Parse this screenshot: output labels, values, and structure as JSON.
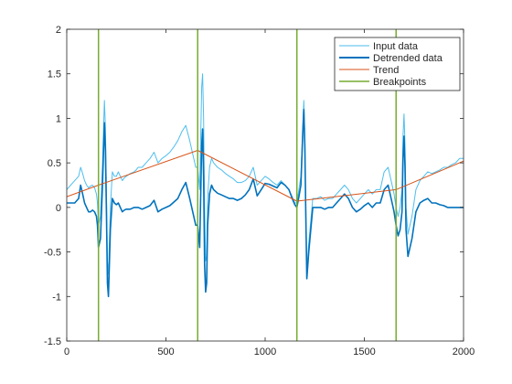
{
  "chart_data": {
    "type": "line",
    "title": "",
    "xlabel": "",
    "ylabel": "",
    "xlim": [
      0,
      2000
    ],
    "ylim": [
      -1.5,
      2
    ],
    "xticks": [
      0,
      500,
      1000,
      1500,
      2000
    ],
    "yticks": [
      -1.5,
      -1,
      -0.5,
      0,
      0.5,
      1,
      1.5,
      2
    ],
    "grid": false,
    "legend_position": "top-right",
    "breakpoints": [
      160,
      660,
      1160,
      1660
    ],
    "series": [
      {
        "name": "Input data",
        "color": "#4DBEEE",
        "x": [
          0,
          40,
          60,
          70,
          80,
          90,
          100,
          110,
          120,
          130,
          140,
          150,
          155,
          160,
          170,
          180,
          190,
          195,
          200,
          205,
          210,
          220,
          230,
          240,
          250,
          260,
          270,
          280,
          290,
          300,
          320,
          340,
          350,
          360,
          380,
          400,
          420,
          440,
          460,
          480,
          500,
          520,
          540,
          560,
          580,
          600,
          620,
          640,
          650,
          660,
          670,
          680,
          685,
          690,
          695,
          700,
          705,
          710,
          720,
          730,
          740,
          760,
          780,
          800,
          820,
          840,
          860,
          880,
          900,
          920,
          940,
          960,
          980,
          1000,
          1020,
          1040,
          1060,
          1080,
          1100,
          1120,
          1140,
          1150,
          1160,
          1170,
          1180,
          1190,
          1195,
          1200,
          1205,
          1210,
          1220,
          1240,
          1260,
          1280,
          1300,
          1320,
          1340,
          1360,
          1380,
          1400,
          1420,
          1440,
          1460,
          1480,
          1500,
          1520,
          1540,
          1560,
          1580,
          1600,
          1620,
          1640,
          1650,
          1660,
          1670,
          1680,
          1690,
          1695,
          1700,
          1705,
          1710,
          1720,
          1740,
          1760,
          1780,
          1800,
          1820,
          1840,
          1860,
          1880,
          1900,
          1920,
          1940,
          1960,
          1980,
          2000
        ],
        "y": [
          0.2,
          0.3,
          0.35,
          0.45,
          0.38,
          0.3,
          0.25,
          0.22,
          0.24,
          0.25,
          0.22,
          0.15,
          0.05,
          -0.2,
          -0.1,
          0.5,
          1.2,
          0.9,
          0.2,
          -0.6,
          -0.75,
          0.0,
          0.4,
          0.35,
          0.35,
          0.4,
          0.35,
          0.3,
          0.33,
          0.35,
          0.38,
          0.4,
          0.42,
          0.45,
          0.45,
          0.5,
          0.55,
          0.62,
          0.5,
          0.55,
          0.58,
          0.62,
          0.68,
          0.75,
          0.85,
          0.92,
          0.75,
          0.55,
          0.45,
          0.45,
          0.2,
          1.35,
          1.5,
          1.0,
          0.0,
          -0.6,
          -0.55,
          0.1,
          0.45,
          0.55,
          0.5,
          0.45,
          0.42,
          0.38,
          0.35,
          0.32,
          0.28,
          0.28,
          0.3,
          0.35,
          0.45,
          0.25,
          0.3,
          0.35,
          0.32,
          0.28,
          0.25,
          0.3,
          0.25,
          0.2,
          0.1,
          0.05,
          0.05,
          0.2,
          0.35,
          0.9,
          1.2,
          0.8,
          0.0,
          -0.7,
          -0.4,
          0.1,
          0.1,
          0.12,
          0.08,
          0.1,
          0.1,
          0.15,
          0.2,
          0.25,
          0.2,
          0.1,
          0.05,
          0.1,
          0.15,
          0.2,
          0.15,
          0.2,
          0.2,
          0.4,
          0.45,
          0.25,
          0.15,
          0.0,
          -0.1,
          0.0,
          0.2,
          0.8,
          1.05,
          0.7,
          0.0,
          -0.3,
          -0.1,
          0.2,
          0.3,
          0.35,
          0.4,
          0.38,
          0.4,
          0.42,
          0.45,
          0.45,
          0.48,
          0.5,
          0.55,
          0.55
        ]
      },
      {
        "name": "Detrended data",
        "color": "#0072BD",
        "x": [
          0,
          40,
          60,
          70,
          80,
          90,
          100,
          110,
          120,
          130,
          140,
          150,
          155,
          160,
          170,
          180,
          190,
          195,
          200,
          205,
          210,
          220,
          230,
          240,
          250,
          260,
          270,
          280,
          290,
          300,
          320,
          340,
          350,
          360,
          380,
          400,
          420,
          440,
          460,
          480,
          500,
          520,
          540,
          560,
          580,
          600,
          620,
          640,
          650,
          660,
          670,
          680,
          685,
          690,
          695,
          700,
          705,
          710,
          720,
          730,
          740,
          760,
          780,
          800,
          820,
          840,
          860,
          880,
          900,
          920,
          940,
          960,
          980,
          1000,
          1020,
          1040,
          1060,
          1080,
          1100,
          1120,
          1140,
          1150,
          1160,
          1170,
          1180,
          1190,
          1195,
          1200,
          1205,
          1210,
          1220,
          1240,
          1260,
          1280,
          1300,
          1320,
          1340,
          1360,
          1380,
          1400,
          1420,
          1440,
          1460,
          1480,
          1500,
          1520,
          1540,
          1560,
          1580,
          1600,
          1620,
          1640,
          1650,
          1660,
          1670,
          1680,
          1690,
          1695,
          1700,
          1705,
          1710,
          1720,
          1740,
          1760,
          1780,
          1800,
          1820,
          1840,
          1860,
          1880,
          1900,
          1920,
          1940,
          1960,
          1980,
          2000
        ],
        "y": [
          0.05,
          0.05,
          0.1,
          0.25,
          0.15,
          0.05,
          0.0,
          -0.05,
          -0.05,
          -0.03,
          -0.05,
          -0.1,
          -0.2,
          -0.45,
          -0.35,
          0.25,
          0.95,
          0.65,
          -0.05,
          -0.85,
          -1.0,
          -0.25,
          0.1,
          0.05,
          0.03,
          0.05,
          0.0,
          -0.05,
          -0.03,
          -0.02,
          -0.02,
          0.0,
          0.0,
          0.0,
          -0.02,
          0.0,
          0.02,
          0.08,
          -0.05,
          -0.02,
          0.0,
          0.02,
          0.06,
          0.1,
          0.2,
          0.28,
          0.1,
          -0.1,
          -0.2,
          -0.2,
          -0.45,
          0.7,
          0.88,
          0.35,
          -0.65,
          -0.95,
          -0.85,
          -0.2,
          0.15,
          0.25,
          0.2,
          0.16,
          0.14,
          0.12,
          0.1,
          0.1,
          0.08,
          0.1,
          0.14,
          0.2,
          0.32,
          0.13,
          0.2,
          0.27,
          0.26,
          0.24,
          0.22,
          0.28,
          0.25,
          0.2,
          0.08,
          0.03,
          0.0,
          0.12,
          0.25,
          0.85,
          1.1,
          0.7,
          -0.1,
          -0.8,
          -0.5,
          0.0,
          0.0,
          0.0,
          -0.02,
          0.0,
          0.0,
          0.05,
          0.1,
          0.15,
          0.1,
          0.0,
          -0.05,
          -0.02,
          0.02,
          0.05,
          0.0,
          0.05,
          0.05,
          0.2,
          0.25,
          0.05,
          -0.05,
          -0.2,
          -0.32,
          -0.25,
          -0.05,
          0.55,
          0.8,
          0.45,
          -0.25,
          -0.55,
          -0.35,
          -0.05,
          0.05,
          0.08,
          0.1,
          0.05,
          0.05,
          0.03,
          0.02,
          0.0,
          0.0,
          0.0,
          0.0,
          0.0
        ]
      },
      {
        "name": "Trend",
        "color": "#D95319",
        "x": [
          0,
          160,
          660,
          1160,
          1660,
          2000
        ],
        "y": [
          0.12,
          0.25,
          0.64,
          0.07,
          0.2,
          0.52
        ]
      }
    ],
    "breakpoints_series": {
      "name": "Breakpoints",
      "color": "#77AC30"
    }
  }
}
